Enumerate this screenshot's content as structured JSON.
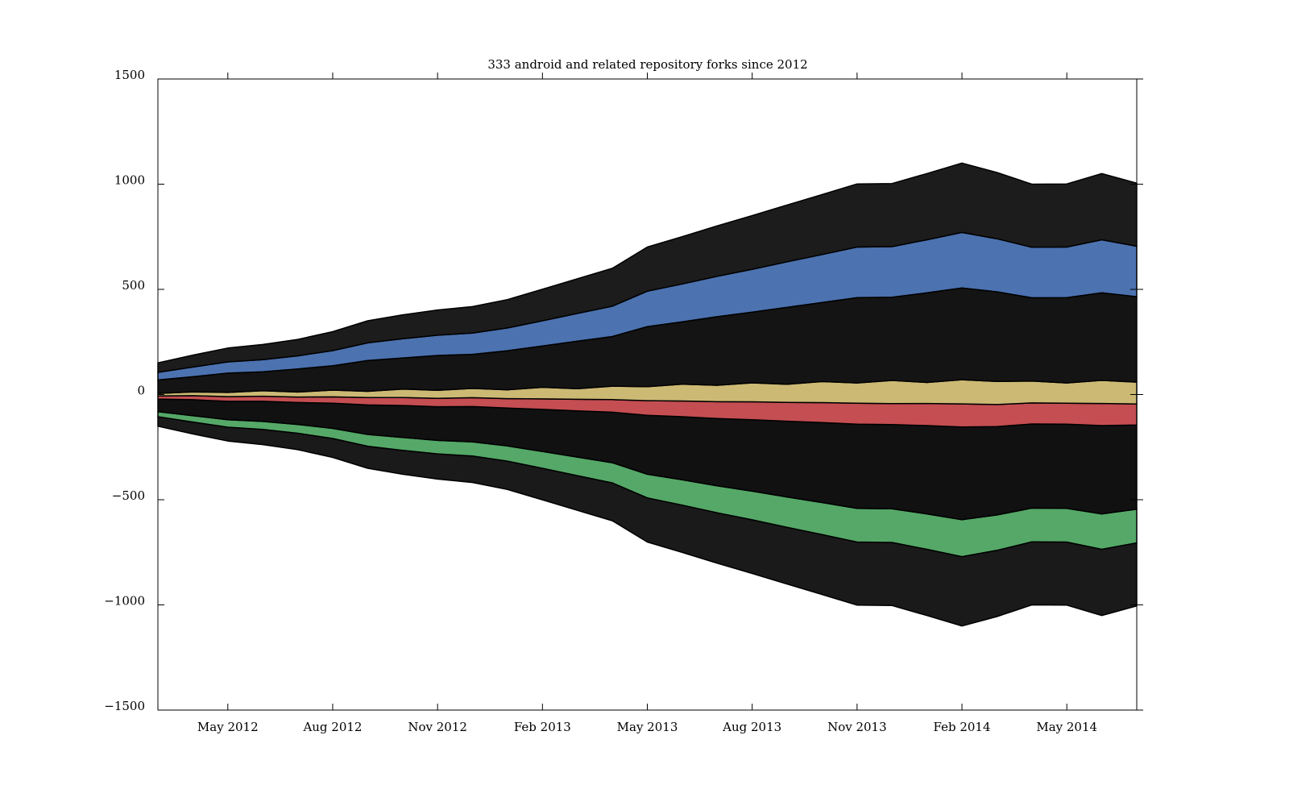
{
  "chart_data": {
    "type": "streamgraph",
    "title": "333 android and related repository forks since 2012",
    "x": [
      "Mar 2012",
      "Apr 2012",
      "May 2012",
      "Jun 2012",
      "Jul 2012",
      "Aug 2012",
      "Sep 2012",
      "Oct 2012",
      "Nov 2012",
      "Dec 2012",
      "Jan 2013",
      "Feb 2013",
      "Mar 2013",
      "Apr 2013",
      "May 2013",
      "Jun 2013",
      "Jul 2013",
      "Aug 2013",
      "Sep 2013",
      "Oct 2013",
      "Nov 2013",
      "Dec 2013",
      "Jan 2014",
      "Feb 2014",
      "Mar 2014",
      "Apr 2014",
      "May 2014",
      "Jun 2014",
      "Jul 2014"
    ],
    "xticks": [
      "May 2012",
      "Aug 2012",
      "Nov 2012",
      "Feb 2013",
      "May 2013",
      "Aug 2013",
      "Nov 2013",
      "Feb 2014",
      "May 2014"
    ],
    "ylim": [
      -1500,
      1500
    ],
    "yticks": [
      {
        "value": -1500,
        "label": "−1500"
      },
      {
        "value": -1000,
        "label": "−1000"
      },
      {
        "value": -500,
        "label": "−500"
      },
      0,
      500,
      1000,
      1500
    ],
    "series": [
      {
        "color": "#1a1a1a",
        "values": [
          45,
          57,
          66,
          72,
          78,
          90,
          105,
          114,
          120,
          126,
          135,
          150,
          165,
          180,
          210,
          225,
          240,
          255,
          270,
          285,
          300,
          300,
          315,
          330,
          315,
          300,
          300,
          315,
          300
        ]
      },
      {
        "color": "#55a868",
        "values": [
          24,
          30,
          35,
          38,
          42,
          48,
          56,
          61,
          64,
          67,
          72,
          80,
          88,
          96,
          112,
          120,
          128,
          136,
          144,
          152,
          160,
          160,
          168,
          176,
          168,
          160,
          160,
          168,
          160
        ]
      },
      {
        "color": "#111111",
        "values": [
          60,
          76,
          88,
          96,
          104,
          120,
          140,
          152,
          160,
          168,
          180,
          200,
          220,
          240,
          280,
          300,
          320,
          340,
          360,
          380,
          400,
          400,
          420,
          440,
          420,
          400,
          400,
          420,
          400
        ]
      },
      {
        "color": "#c44e52",
        "values": [
          15,
          19,
          22,
          24,
          26,
          30,
          35,
          38,
          40,
          42,
          45,
          50,
          55,
          60,
          70,
          75,
          80,
          85,
          90,
          95,
          100,
          100,
          105,
          110,
          105,
          100,
          100,
          105,
          100
        ]
      },
      {
        "color": "#ccb974",
        "values": [
          12,
          18,
          20,
          26,
          24,
          32,
          30,
          40,
          38,
          44,
          42,
          55,
          50,
          64,
          66,
          80,
          78,
          90,
          86,
          100,
          96,
          110,
          100,
          115,
          110,
          104,
          96,
          110,
          104
        ]
      },
      {
        "color": "#141414",
        "values": [
          64,
          72,
          92,
          90,
          110,
          116,
          146,
          148,
          166,
          162,
          186,
          196,
          226,
          236,
          286,
          296,
          326,
          336,
          366,
          376,
          406,
          396,
          426,
          436,
          426,
          396,
          406,
          416,
          406
        ]
      },
      {
        "color": "#4c72b0",
        "values": [
          36,
          46,
          53,
          58,
          62,
          72,
          84,
          91,
          96,
          101,
          108,
          120,
          132,
          144,
          168,
          180,
          192,
          204,
          216,
          228,
          240,
          240,
          252,
          264,
          252,
          240,
          240,
          252,
          240
        ]
      },
      {
        "color": "#1c1c1c",
        "values": [
          45,
          57,
          66,
          72,
          78,
          90,
          105,
          114,
          120,
          126,
          135,
          150,
          165,
          180,
          210,
          225,
          240,
          255,
          270,
          285,
          300,
          300,
          315,
          330,
          315,
          300,
          300,
          315,
          300
        ]
      }
    ]
  }
}
